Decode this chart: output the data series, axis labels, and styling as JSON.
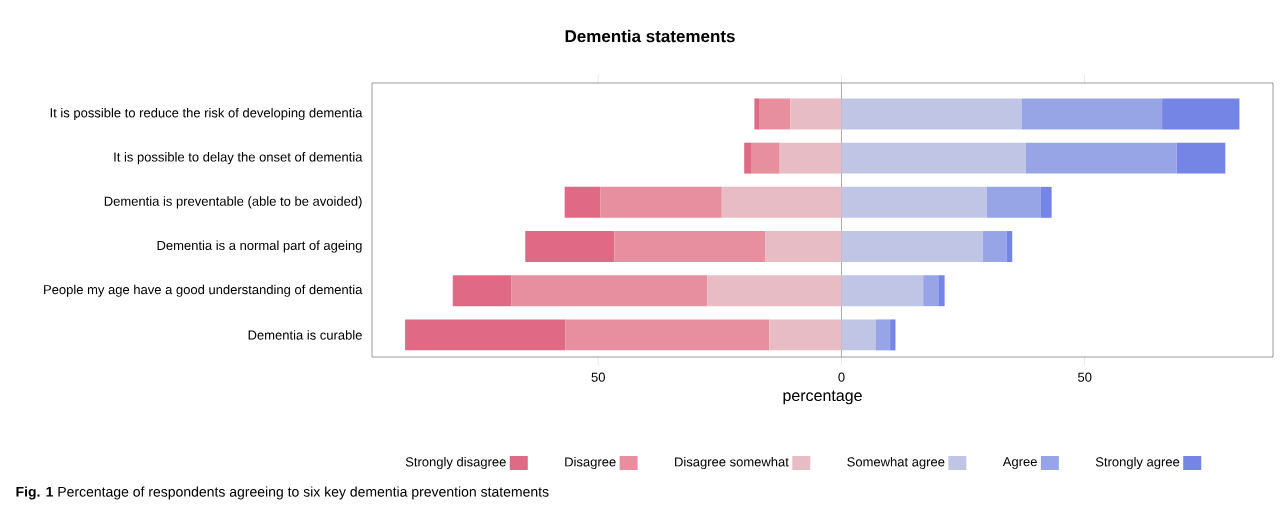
{
  "chart_data": {
    "type": "bar",
    "orientation": "horizontal",
    "title": "Dementia statements",
    "xlabel": "percentage",
    "categories": [
      "It is possible to reduce the risk of developing dementia",
      "It is possible to delay the onset of dementia",
      "Dementia is preventable (able to be avoided)",
      "Dementia is a normal part of ageing",
      "People my age have a good understanding of dementia",
      "Dementia is curable"
    ],
    "series": [
      {
        "name": "Strongly disagree",
        "color": "#e06a86",
        "values": [
          1.1,
          1.4,
          7.3,
          18.3,
          12.1,
          32.9
        ],
        "base": [
          -17.9,
          -20.0,
          -56.9,
          -65.0,
          -79.9,
          -89.7
        ]
      },
      {
        "name": "Disagree",
        "color": "#e78f9e",
        "values": [
          6.3,
          5.9,
          25.0,
          31.0,
          40.2,
          42.0
        ],
        "base": [
          -16.8,
          -18.6,
          -49.6,
          -46.7,
          -67.8,
          -56.8
        ]
      },
      {
        "name": "Disagree somewhat",
        "color": "#e8bcc4",
        "values": [
          10.5,
          12.7,
          24.6,
          15.7,
          27.6,
          14.8
        ],
        "base": [
          -10.5,
          -12.7,
          -24.6,
          -15.7,
          -27.6,
          -14.8
        ]
      },
      {
        "name": "Somewhat agree",
        "color": "#c0c5e6",
        "values": [
          37.0,
          37.9,
          29.9,
          29.1,
          16.8,
          7.0
        ],
        "base": [
          0,
          0,
          0,
          0,
          0,
          0
        ]
      },
      {
        "name": "Agree",
        "color": "#97a5e6",
        "values": [
          28.9,
          31.0,
          11.0,
          4.8,
          3.1,
          3.0
        ],
        "base": [
          37.0,
          37.9,
          29.9,
          29.1,
          16.8,
          7.0
        ]
      },
      {
        "name": "Strongly agree",
        "color": "#7585e6",
        "values": [
          15.9,
          10.0,
          2.3,
          1.2,
          1.3,
          1.1
        ],
        "base": [
          65.9,
          68.9,
          40.9,
          33.9,
          19.9,
          10.0
        ]
      }
    ],
    "xlim": [
      -96.5,
      88.7
    ],
    "xticks": [
      {
        "value": -50,
        "label": "50"
      },
      0,
      50
    ],
    "ref_lines": [
      {
        "axis": "x",
        "value": 0,
        "color": "#aaaaaa"
      }
    ],
    "legend": "bottom",
    "annotations": [
      "**Fig. 1** Percentage of respondents agreeing to six key dementia prevention statements"
    ]
  }
}
